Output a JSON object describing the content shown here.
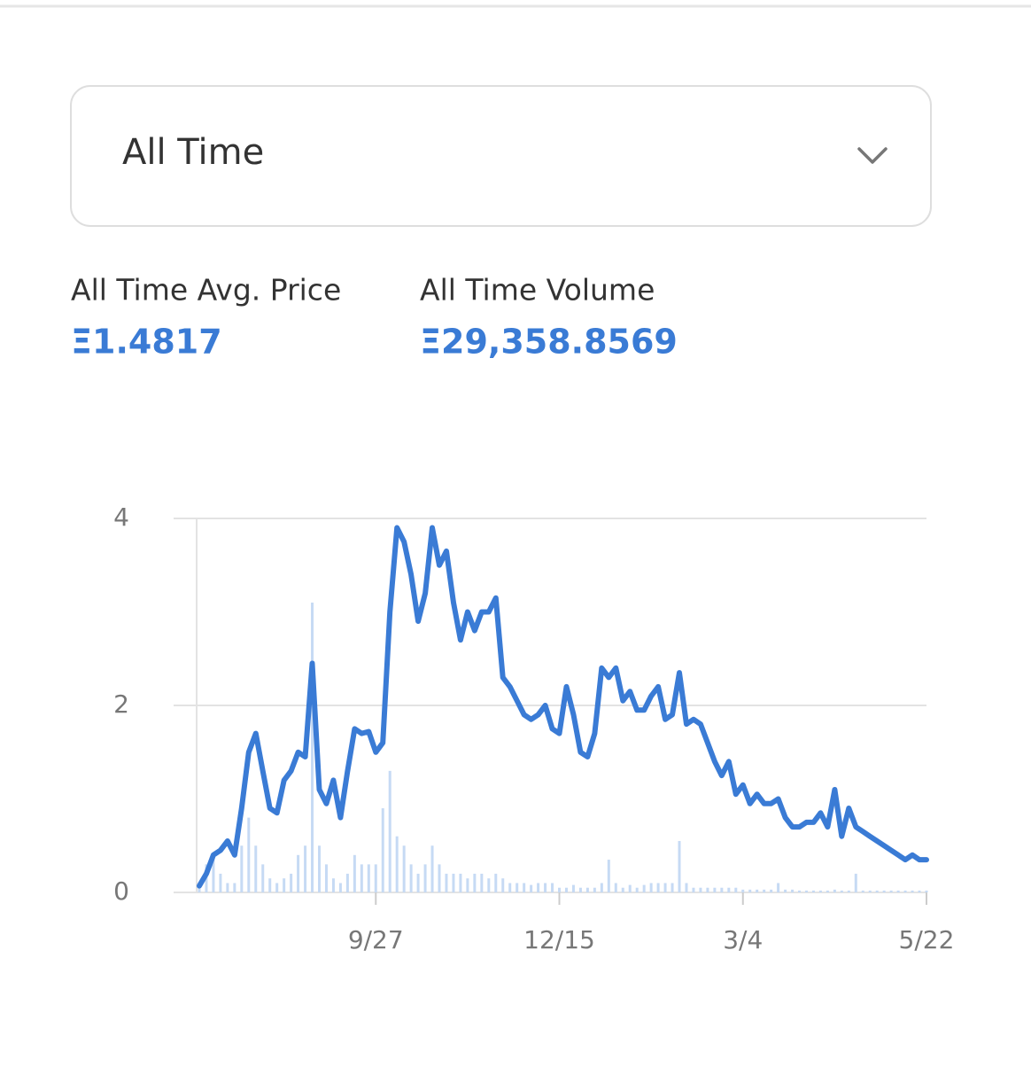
{
  "dropdown": {
    "label": "All Time"
  },
  "stats": [
    {
      "label": "All Time Avg. Price",
      "value": "Ξ1.4817"
    },
    {
      "label": "All Time Volume",
      "value": "Ξ29,358.8569"
    }
  ],
  "chart_data": {
    "type": "line",
    "categories": [
      null,
      null,
      null,
      null,
      null,
      null,
      null,
      null,
      null,
      null,
      null,
      null,
      null,
      null,
      null,
      null,
      null,
      null,
      null,
      null,
      null,
      null,
      null,
      null,
      null,
      "9/27",
      null,
      null,
      null,
      null,
      null,
      null,
      null,
      null,
      null,
      null,
      null,
      null,
      null,
      null,
      null,
      null,
      null,
      null,
      null,
      null,
      null,
      null,
      null,
      null,
      null,
      "12/15",
      null,
      null,
      null,
      null,
      null,
      null,
      null,
      null,
      null,
      null,
      null,
      null,
      null,
      null,
      null,
      null,
      null,
      null,
      null,
      null,
      null,
      null,
      null,
      null,
      null,
      "3/4",
      null,
      null,
      null,
      null,
      null,
      null,
      null,
      null,
      null,
      null,
      null,
      null,
      null,
      null,
      null,
      null,
      null,
      null,
      null,
      null,
      null,
      null,
      null,
      null,
      null,
      "5/22"
    ],
    "series": [
      {
        "color": "#3a7bd5",
        "values": [
          0.07,
          0.2,
          0.4,
          0.45,
          0.55,
          0.4,
          0.9,
          1.5,
          1.7,
          1.3,
          0.9,
          0.85,
          1.2,
          1.3,
          1.5,
          1.45,
          2.45,
          1.1,
          0.95,
          1.2,
          0.8,
          1.3,
          1.75,
          1.7,
          1.72,
          1.5,
          1.6,
          3.0,
          3.9,
          3.75,
          3.4,
          2.9,
          3.2,
          3.9,
          3.5,
          3.65,
          3.1,
          2.7,
          3.0,
          2.8,
          3.0,
          3.0,
          3.15,
          2.3,
          2.2,
          2.05,
          1.9,
          1.85,
          1.9,
          2.0,
          1.75,
          1.7,
          2.2,
          1.9,
          1.5,
          1.45,
          1.7,
          2.4,
          2.3,
          2.4,
          2.05,
          2.15,
          1.95,
          1.95,
          2.1,
          2.2,
          1.85,
          1.9,
          2.35,
          1.8,
          1.85,
          1.8,
          1.6,
          1.4,
          1.25,
          1.4,
          1.05,
          1.15,
          0.95,
          1.05,
          0.95,
          0.95,
          1.0,
          0.8,
          0.7,
          0.7,
          0.75,
          0.75,
          0.85,
          0.7,
          1.1,
          0.6,
          0.9,
          0.7,
          0.65,
          0.6,
          0.55,
          0.5,
          0.45,
          0.4,
          0.35,
          0.4,
          0.35,
          0.35
        ]
      },
      {
        "type": "bar",
        "color": "#c6daf4",
        "values": [
          0.1,
          0.3,
          0.4,
          0.2,
          0.1,
          0.1,
          0.5,
          0.8,
          0.5,
          0.3,
          0.15,
          0.1,
          0.15,
          0.2,
          0.4,
          0.5,
          3.1,
          0.5,
          0.3,
          0.15,
          0.1,
          0.2,
          0.4,
          0.3,
          0.3,
          0.3,
          0.9,
          1.3,
          0.6,
          0.5,
          0.3,
          0.2,
          0.3,
          0.5,
          0.3,
          0.2,
          0.2,
          0.2,
          0.15,
          0.2,
          0.2,
          0.15,
          0.2,
          0.15,
          0.1,
          0.1,
          0.1,
          0.08,
          0.1,
          0.1,
          0.1,
          0.05,
          0.05,
          0.08,
          0.05,
          0.05,
          0.05,
          0.1,
          0.35,
          0.1,
          0.05,
          0.08,
          0.05,
          0.08,
          0.1,
          0.1,
          0.1,
          0.1,
          0.55,
          0.1,
          0.05,
          0.05,
          0.05,
          0.05,
          0.05,
          0.05,
          0.05,
          0.03,
          0.03,
          0.03,
          0.03,
          0.03,
          0.1,
          0.03,
          0.03,
          0.02,
          0.02,
          0.02,
          0.02,
          0.02,
          0.03,
          0.02,
          0.02,
          0.2,
          0.02,
          0.02,
          0.02,
          0.02,
          0.02,
          0.02,
          0.02,
          0.02,
          0.02,
          0.02
        ]
      }
    ],
    "ylim": [
      0,
      4
    ],
    "yticks": [
      0,
      2,
      4
    ],
    "grid": true
  }
}
